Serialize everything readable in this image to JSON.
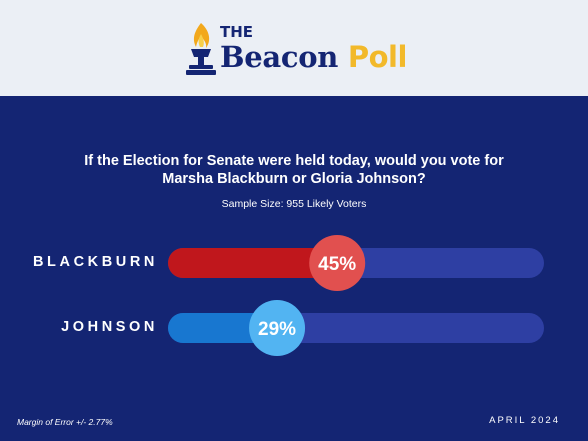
{
  "brand": {
    "the": "THE",
    "beacon": "Beacon",
    "poll": "Poll"
  },
  "question": {
    "line1": "If the Election for Senate were held today, would you vote for",
    "line2": "Marsha Blackburn or Gloria Johnson?"
  },
  "sample_size": "Sample Size: 955 Likely Voters",
  "margin_of_error": "Margin of Error +/- 2.77%",
  "date": "APRIL 2024",
  "colors": {
    "header_bg": "#ebeff5",
    "background": "#142573",
    "track": "#2e3fa3",
    "blackburn_fill": "#c0171c",
    "blackburn_bubble": "#e1504f",
    "johnson_fill": "#1877d0",
    "johnson_bubble": "#52b4f2",
    "logo_navy": "#142573",
    "logo_gold": "#f2b92a",
    "flame": "#f2a81c"
  },
  "chart_data": {
    "type": "bar",
    "orientation": "horizontal",
    "categories": [
      "BLACKBURN",
      "JOHNSON"
    ],
    "values": [
      45,
      29
    ],
    "value_labels": [
      "45%",
      "29%"
    ],
    "xlim": [
      0,
      100
    ],
    "grid": false,
    "legend": "none"
  }
}
